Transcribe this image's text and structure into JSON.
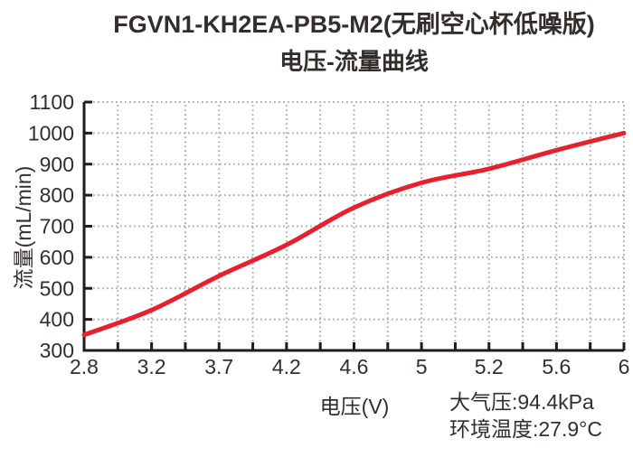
{
  "title": {
    "line1": "FGVN1-KH2EA-PB5-M2(无刷空心杯低噪版)",
    "line2": "电压-流量曲线"
  },
  "chart_data": {
    "type": "line",
    "title": "FGVN1-KH2EA-PB5-M2(无刷空心杯低噪版) 电压-流量曲线",
    "xlabel": "电压(V)",
    "ylabel": "流量(mL/min)",
    "x_labels": [
      "2.8",
      "3.2",
      "3.7",
      "4.2",
      "4.6",
      "5",
      "5.2",
      "5.6",
      "6"
    ],
    "series": [
      {
        "name": "电压-流量曲线",
        "color": "#e8202e",
        "values": [
          350,
          430,
          540,
          640,
          760,
          840,
          885,
          945,
          1000
        ]
      }
    ],
    "ylim": [
      300,
      1100
    ],
    "y_ticks": [
      300,
      400,
      500,
      600,
      700,
      800,
      900,
      1000,
      1100
    ],
    "grid": "dotted",
    "minor_x_divisions": 2,
    "legend": "none"
  },
  "annotations": {
    "pressure": "大气压:94.4kPa",
    "temperature": "环境温度:27.9°C"
  },
  "colors": {
    "curve": "#e8202e",
    "axis": "#201c1a",
    "grid": "#b1aeae",
    "text": "#332e2b",
    "background": "#ffffff"
  }
}
